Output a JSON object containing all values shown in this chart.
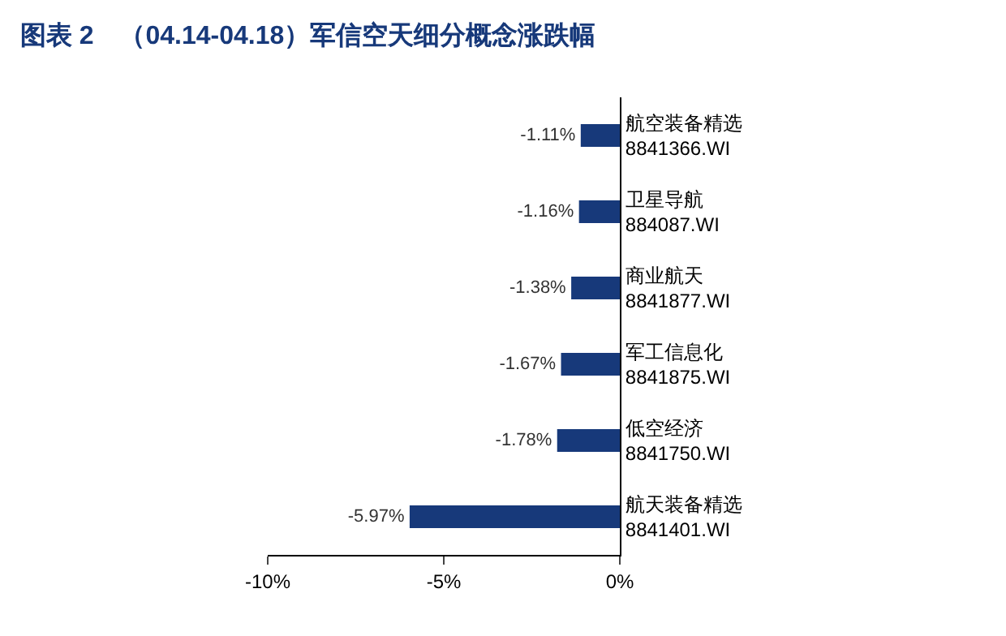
{
  "chart_data": {
    "type": "bar",
    "orientation": "horizontal",
    "title": "图表 2　（04.14-04.18）军信空天细分概念涨跌幅",
    "categories": [
      "航空装备精选\n8841366.WI",
      "卫星导航\n884087.WI",
      "商业航天\n8841877.WI",
      "军工信息化\n8841875.WI",
      "低空经济\n8841750.WI",
      "航天装备精选\n8841401.WI"
    ],
    "values": [
      -1.11,
      -1.16,
      -1.38,
      -1.67,
      -1.78,
      -5.97
    ],
    "value_labels": [
      "-1.11%",
      "-1.16%",
      "-1.38%",
      "-1.67%",
      "-1.78%",
      "-5.97%"
    ],
    "color": "#17397a",
    "xlim": [
      -10,
      0
    ],
    "xticks": [
      {
        "value": -10,
        "label": "-10%"
      },
      {
        "value": -5,
        "label": "-5%"
      },
      {
        "value": 0,
        "label": "0%"
      }
    ],
    "grid": false
  }
}
